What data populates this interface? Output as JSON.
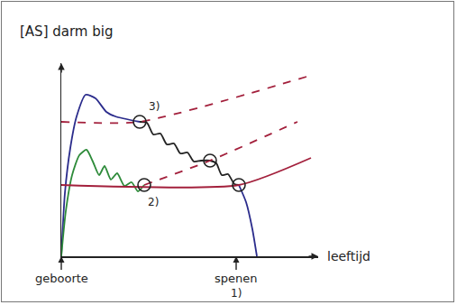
{
  "chart_data": {
    "type": "line",
    "x_label": "leeftijd",
    "y_label": "[AS] darm big",
    "xlim": [
      0,
      28.5
    ],
    "ylim": [
      0,
      21.4
    ],
    "tick_labels": false,
    "grid": false,
    "series": [
      {
        "color": "#2b2c8c",
        "line_style": "solid",
        "type": "line",
        "x": [
          0,
          0.4,
          1,
          1.7,
          2.7,
          3.8,
          5,
          6,
          8.7
        ],
        "values": [
          0,
          7,
          12,
          15.5,
          17.9,
          17.5,
          16,
          15.5,
          14.9
        ]
      },
      {
        "color": "#222222",
        "line_style": "solid",
        "type": "line",
        "x": [
          8.7,
          9.5,
          10.2,
          11,
          11.7,
          12.5,
          13.2,
          14,
          14.7,
          15.5,
          16.5,
          17.2,
          17.8,
          18.5,
          19.2,
          19.7
        ],
        "values": [
          14.9,
          14.8,
          13.5,
          13.6,
          12.4,
          12.5,
          11.4,
          11.5,
          10.5,
          10.6,
          10.6,
          10.3,
          9.0,
          9.1,
          8.0,
          7.9
        ]
      },
      {
        "color": "#2b2c8c",
        "line_style": "solid",
        "type": "line",
        "x": [
          19.7,
          20.5,
          21.2,
          21.7
        ],
        "values": [
          7.9,
          6,
          3,
          0
        ]
      },
      {
        "color": "#2e8b3a",
        "line_style": "solid",
        "type": "line",
        "x": [
          0,
          0.5,
          1.2,
          2,
          2.8,
          3.5,
          4.2,
          4.8,
          5.5,
          6.2,
          7,
          7.8,
          8.5,
          9.2
        ],
        "values": [
          0,
          5,
          9,
          11.2,
          11.8,
          10.5,
          9,
          10,
          8.5,
          9.2,
          7.8,
          8.2,
          7.2,
          7.9
        ]
      },
      {
        "color": "#a3203c",
        "line_style": "solid",
        "type": "line",
        "x": [
          0,
          19.7,
          27.7
        ],
        "values": [
          7.9,
          7.9,
          10.9
        ]
      },
      {
        "color": "#a3203c",
        "line_style": "dash",
        "type": "line",
        "x": [
          9.2,
          16.5,
          26.2
        ],
        "values": [
          7.9,
          10.6,
          14.9
        ]
      },
      {
        "color": "#a3203c",
        "line_style": "dash",
        "type": "line",
        "x": [
          0,
          8.7,
          27.2
        ],
        "values": [
          14.9,
          14.9,
          19.9
        ]
      },
      {
        "color": "#222222",
        "marker": "circle-open",
        "type": "scatter",
        "x": [
          8.7,
          9.2,
          16.5,
          19.7
        ],
        "values": [
          14.9,
          7.9,
          10.6,
          7.9
        ]
      }
    ],
    "axis_marks": [
      {
        "x": 0,
        "label": [
          "geboorte"
        ]
      },
      {
        "x": 19.4,
        "label": [
          "spenen",
          "1)"
        ]
      }
    ],
    "notes": [
      {
        "text": "3)",
        "x": 9.5,
        "y": 16.6
      },
      {
        "text": "2)",
        "x": 9.4,
        "y": 6.0
      }
    ]
  }
}
